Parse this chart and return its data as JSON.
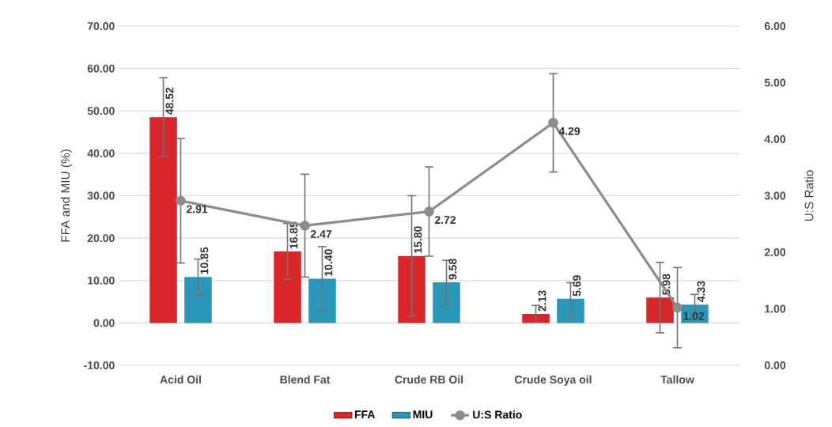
{
  "chart_data": {
    "type": "bar",
    "categories": [
      "Acid Oil",
      "Blend Fat",
      "Crude RB Oil",
      "Crude Soya oil",
      "Tallow"
    ],
    "ylabel": "FFA and MIU (%)",
    "y2label": "U:S Ratio",
    "ylim": [
      -10,
      70
    ],
    "yticks": [
      {
        "value": -10,
        "label": "-10.00"
      },
      {
        "value": 0,
        "label": "0.00"
      },
      {
        "value": 10,
        "label": "10.00"
      },
      {
        "value": 20,
        "label": "20.00"
      },
      {
        "value": 30,
        "label": "30.00"
      },
      {
        "value": 40,
        "label": "40.00"
      },
      {
        "value": 50,
        "label": "50.00"
      },
      {
        "value": 60,
        "label": "60.00"
      },
      {
        "value": 70,
        "label": "70.00"
      }
    ],
    "y2lim": [
      0,
      6
    ],
    "y2ticks": [
      {
        "value": 0,
        "label": "0.00"
      },
      {
        "value": 1,
        "label": "1.00"
      },
      {
        "value": 2,
        "label": "2.00"
      },
      {
        "value": 3,
        "label": "3.00"
      },
      {
        "value": 4,
        "label": "4.00"
      },
      {
        "value": 5,
        "label": "5.00"
      },
      {
        "value": 6,
        "label": "6.00"
      }
    ],
    "grid": "y",
    "legend": "bottom",
    "series": [
      {
        "name": "FFA",
        "type": "bar",
        "color": "#d9262a",
        "values": [
          48.52,
          16.85,
          15.8,
          2.13,
          5.98
        ],
        "errors": [
          9.3,
          6.6,
          14.2,
          2.0,
          8.3
        ],
        "value_labels": [
          "48.52",
          "16.85",
          "15.80",
          "2.13",
          "5.98"
        ]
      },
      {
        "name": "MIU",
        "type": "bar",
        "color": "#2a96b8",
        "values": [
          10.85,
          10.4,
          9.58,
          5.69,
          4.33
        ],
        "errors": [
          4.2,
          7.6,
          5.2,
          3.8,
          2.4
        ],
        "value_labels": [
          "10.85",
          "10.40",
          "9.58",
          "5.69",
          "4.33"
        ]
      },
      {
        "name": "U:S Ratio",
        "type": "line",
        "axis": "y2",
        "color": "#8c8c8c",
        "marker": "circle",
        "line_style": "solid",
        "values": [
          2.91,
          2.47,
          2.72,
          4.29,
          1.02
        ],
        "errors": [
          1.1,
          0.91,
          0.79,
          0.87,
          0.71
        ],
        "value_labels": [
          "2.91",
          "2.47",
          "2.72",
          "4.29",
          "1.02"
        ]
      }
    ]
  }
}
